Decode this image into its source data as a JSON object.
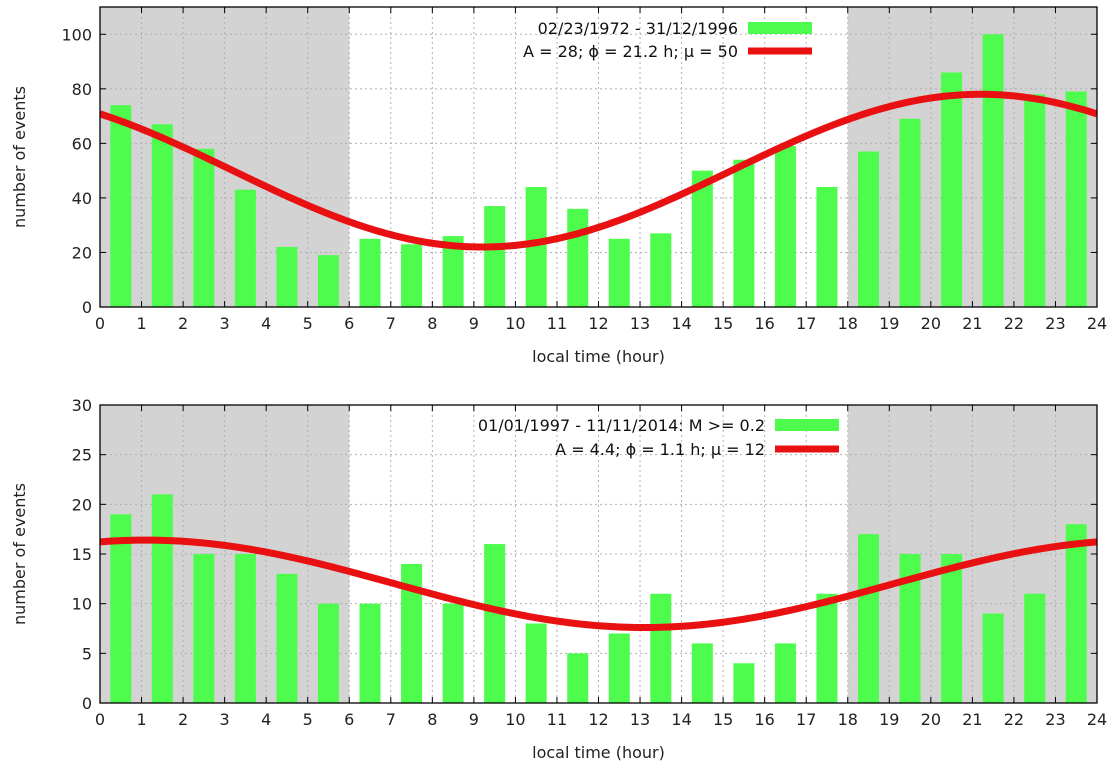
{
  "colors": {
    "bar": "#4efc4e",
    "curve": "#e81010",
    "night": "#d3d3d3",
    "day": "#ffffff"
  },
  "chart_data": [
    {
      "type": "bar",
      "xlabel": "local time (hour)",
      "ylabel": "number of events",
      "xlim": [
        0,
        24
      ],
      "ylim": [
        0,
        110
      ],
      "xticks": [
        0,
        1,
        2,
        3,
        4,
        5,
        6,
        7,
        8,
        9,
        10,
        11,
        12,
        13,
        14,
        15,
        16,
        17,
        18,
        19,
        20,
        21,
        22,
        23,
        24
      ],
      "yticks": [
        0,
        20,
        40,
        60,
        80,
        100
      ],
      "grid": true,
      "shaded_ranges": [
        [
          0,
          6
        ],
        [
          18,
          24
        ]
      ],
      "legend_position": "top-center",
      "series": [
        {
          "name": "02/23/1972 - 31/12/1996",
          "kind": "bar",
          "x": [
            0.5,
            1.5,
            2.5,
            3.5,
            4.5,
            5.5,
            6.5,
            7.5,
            8.5,
            9.5,
            10.5,
            11.5,
            12.5,
            13.5,
            14.5,
            15.5,
            16.5,
            17.5,
            18.5,
            19.5,
            20.5,
            21.5,
            22.5,
            23.5
          ],
          "values": [
            74,
            67,
            58,
            43,
            22,
            19,
            25,
            23,
            26,
            37,
            44,
            36,
            25,
            27,
            50,
            54,
            59,
            44,
            57,
            69,
            86,
            100,
            78,
            79
          ]
        },
        {
          "name": "A = 28; ϕ = 21.2 h; μ  = 50",
          "kind": "cosine",
          "A": 28,
          "phi": 21.2,
          "mu": 50
        }
      ]
    },
    {
      "type": "bar",
      "xlabel": "local time (hour)",
      "ylabel": "number of events",
      "xlim": [
        0,
        24
      ],
      "ylim": [
        0,
        30
      ],
      "xticks": [
        0,
        1,
        2,
        3,
        4,
        5,
        6,
        7,
        8,
        9,
        10,
        11,
        12,
        13,
        14,
        15,
        16,
        17,
        18,
        19,
        20,
        21,
        22,
        23,
        24
      ],
      "yticks": [
        0,
        5,
        10,
        15,
        20,
        25,
        30
      ],
      "grid": true,
      "shaded_ranges": [
        [
          0,
          6
        ],
        [
          18,
          24
        ]
      ],
      "legend_position": "top-center",
      "series": [
        {
          "name": "01/01/1997 - 11/11/2014: M >= 0.2",
          "kind": "bar",
          "x": [
            0.5,
            1.5,
            2.5,
            3.5,
            4.5,
            5.5,
            6.5,
            7.5,
            8.5,
            9.5,
            10.5,
            11.5,
            12.5,
            13.5,
            14.5,
            15.5,
            16.5,
            17.5,
            18.5,
            19.5,
            20.5,
            21.5,
            22.5,
            23.5
          ],
          "values": [
            19,
            21,
            15,
            15,
            13,
            10,
            10,
            14,
            10,
            16,
            8,
            5,
            7,
            11,
            6,
            4,
            6,
            11,
            17,
            15,
            15,
            9,
            11,
            18
          ]
        },
        {
          "name": "A = 4.4; ϕ = 1.1 h; μ  = 12",
          "kind": "cosine",
          "A": 4.4,
          "phi": 1.1,
          "mu": 12
        }
      ]
    }
  ]
}
